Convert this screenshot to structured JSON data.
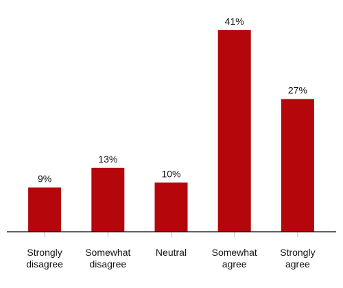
{
  "chart_data": {
    "type": "bar",
    "categories": [
      "Strongly disagree",
      "Somewhat disagree",
      "Neutral",
      "Somewhat agree",
      "Strongly agree"
    ],
    "values": [
      9,
      13,
      10,
      41,
      27
    ],
    "value_labels": [
      "9%",
      "13%",
      "10%",
      "41%",
      "27%"
    ],
    "color": "#b5060c"
  }
}
